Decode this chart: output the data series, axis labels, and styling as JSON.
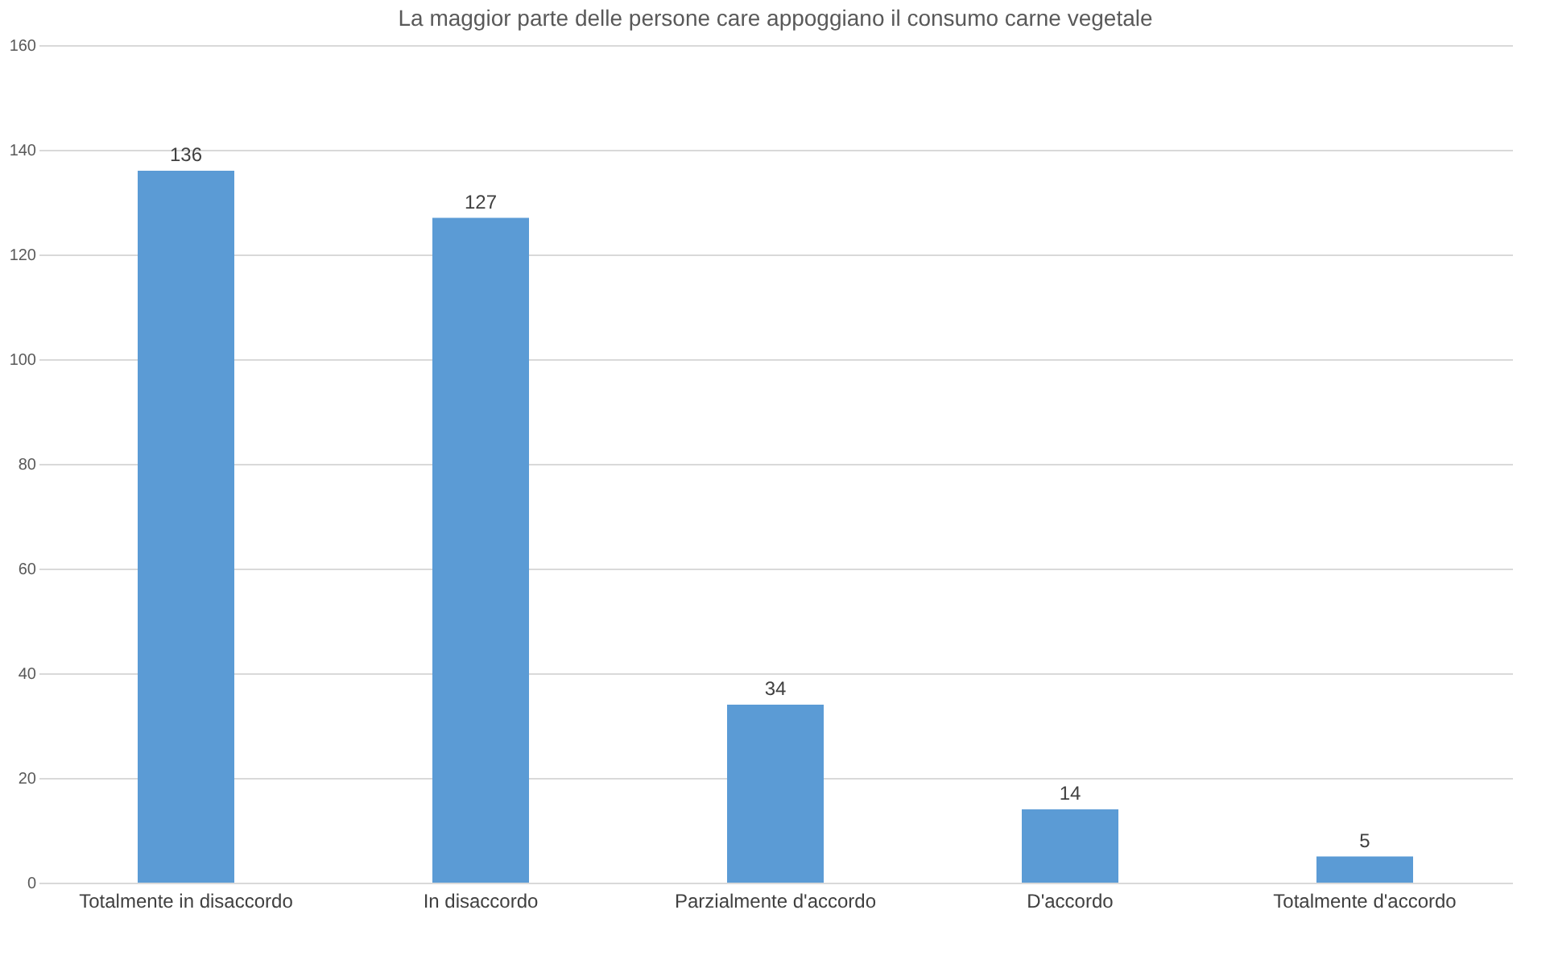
{
  "chart_data": {
    "type": "bar",
    "title": "La maggior parte delle persone care appoggiano il consumo carne vegetale",
    "categories": [
      "Totalmente in disaccordo",
      "In disaccordo",
      "Parzialmente d'accordo",
      "D'accordo",
      "Totalmente d'accordo"
    ],
    "values": [
      136,
      127,
      34,
      14,
      5
    ],
    "color": "#5b9bd5",
    "data_labels": true,
    "grid": "y",
    "ylim": [
      0,
      160
    ],
    "yticks": [
      0,
      20,
      40,
      60,
      80,
      100,
      120,
      140,
      160
    ]
  }
}
